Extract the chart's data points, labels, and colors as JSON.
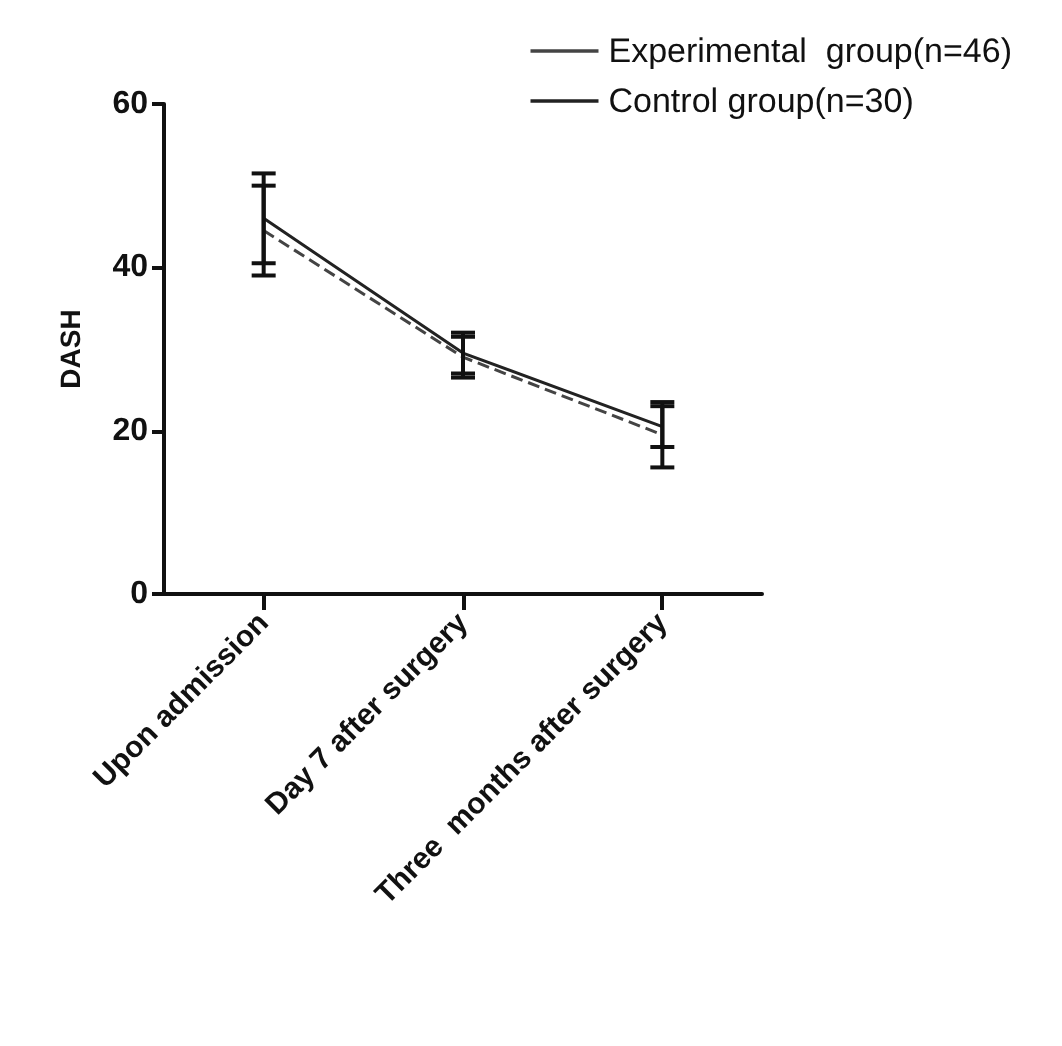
{
  "chart_data": {
    "type": "line",
    "ylabel": "DASH",
    "categories": [
      "Upon admission",
      "Day 7 after surgery",
      "Three  months after surgery"
    ],
    "series": [
      {
        "name": "Experimental  group(n=46)",
        "color": "#444444",
        "line_style": "dashed",
        "values": [
          44.5,
          29,
          19.5
        ],
        "errors": [
          5.5,
          2.5,
          4
        ]
      },
      {
        "name": "Control group(n=30)",
        "color": "#222222",
        "line_style": "solid",
        "values": [
          46,
          29.5,
          20.5
        ],
        "errors": [
          5.5,
          2.5,
          2.5
        ]
      }
    ],
    "ylim": [
      0,
      60
    ],
    "yticks": [
      0,
      20,
      40,
      60
    ],
    "grid": false,
    "legend": "top right",
    "marker": "none"
  }
}
